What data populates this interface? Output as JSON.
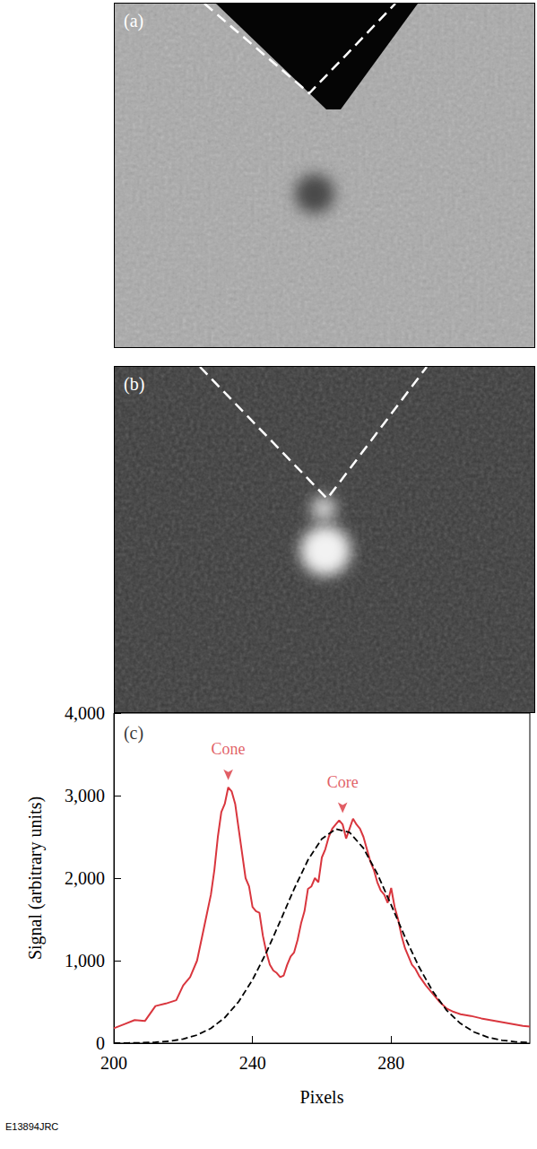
{
  "images": [
    {
      "label": "(a)"
    },
    {
      "label": "(b)"
    }
  ],
  "figure_id": "E13894JRC",
  "chart_data": {
    "type": "line",
    "panel_label": "(c)",
    "xlabel": "Pixels",
    "ylabel": "Signal (arbitrary units)",
    "xlim": [
      200,
      320
    ],
    "ylim": [
      0,
      4000
    ],
    "xticks": [
      200,
      240,
      280
    ],
    "yticks": [
      0,
      1000,
      2000,
      3000,
      4000
    ],
    "grid": false,
    "series": [
      {
        "color": "#d9363e",
        "line_style": "solid",
        "x": [
          200,
          203,
          206,
          209,
          212,
          215,
          218,
          220,
          222,
          224,
          226,
          228,
          229,
          230,
          231,
          232,
          233,
          234,
          235,
          236,
          237,
          238,
          239,
          240,
          241,
          242,
          243,
          244,
          245,
          246,
          247,
          248,
          249,
          250,
          251,
          252,
          253,
          254,
          255,
          256,
          257,
          258,
          259,
          260,
          261,
          262,
          263,
          264,
          265,
          266,
          267,
          268,
          269,
          270,
          271,
          272,
          273,
          274,
          275,
          276,
          277,
          278,
          279,
          280,
          281,
          282,
          283,
          284,
          285,
          286,
          287,
          288,
          290,
          292,
          294,
          296,
          298,
          300,
          303,
          306,
          310,
          314,
          318,
          320
        ],
        "values": [
          180,
          230,
          280,
          270,
          450,
          480,
          520,
          700,
          800,
          1000,
          1400,
          1800,
          2100,
          2500,
          2800,
          2900,
          3100,
          3050,
          2900,
          2600,
          2300,
          2000,
          1900,
          1650,
          1600,
          1580,
          1300,
          1100,
          950,
          880,
          850,
          800,
          820,
          950,
          1050,
          1100,
          1250,
          1450,
          1600,
          1870,
          1900,
          2000,
          1950,
          2250,
          2350,
          2500,
          2600,
          2650,
          2700,
          2650,
          2480,
          2600,
          2720,
          2650,
          2600,
          2500,
          2350,
          2200,
          2100,
          1950,
          1850,
          1800,
          1700,
          1880,
          1650,
          1500,
          1300,
          1150,
          1050,
          950,
          900,
          820,
          700,
          600,
          500,
          420,
          380,
          350,
          330,
          300,
          270,
          240,
          210,
          200
        ]
      },
      {
        "color": "#000000",
        "line_style": "dashed",
        "x": [
          200,
          204,
          208,
          212,
          216,
          220,
          224,
          228,
          232,
          236,
          240,
          244,
          248,
          252,
          256,
          260,
          264,
          268,
          272,
          276,
          280,
          284,
          288,
          292,
          296,
          300,
          304,
          308,
          312,
          316,
          320
        ],
        "values": [
          1,
          2,
          5,
          11,
          24,
          50,
          98,
          180,
          309,
          503,
          767,
          1099,
          1479,
          1869,
          2220,
          2476,
          2595,
          2554,
          2363,
          2053,
          1675,
          1285,
          926,
          628,
          398,
          238,
          133,
          70,
          35,
          16,
          7
        ]
      }
    ],
    "annotations": [
      {
        "text": "Cone",
        "x": 233,
        "y": 3100,
        "color": "#d9363e"
      },
      {
        "text": "Core",
        "x": 266,
        "y": 2700,
        "color": "#d9363e"
      }
    ]
  }
}
